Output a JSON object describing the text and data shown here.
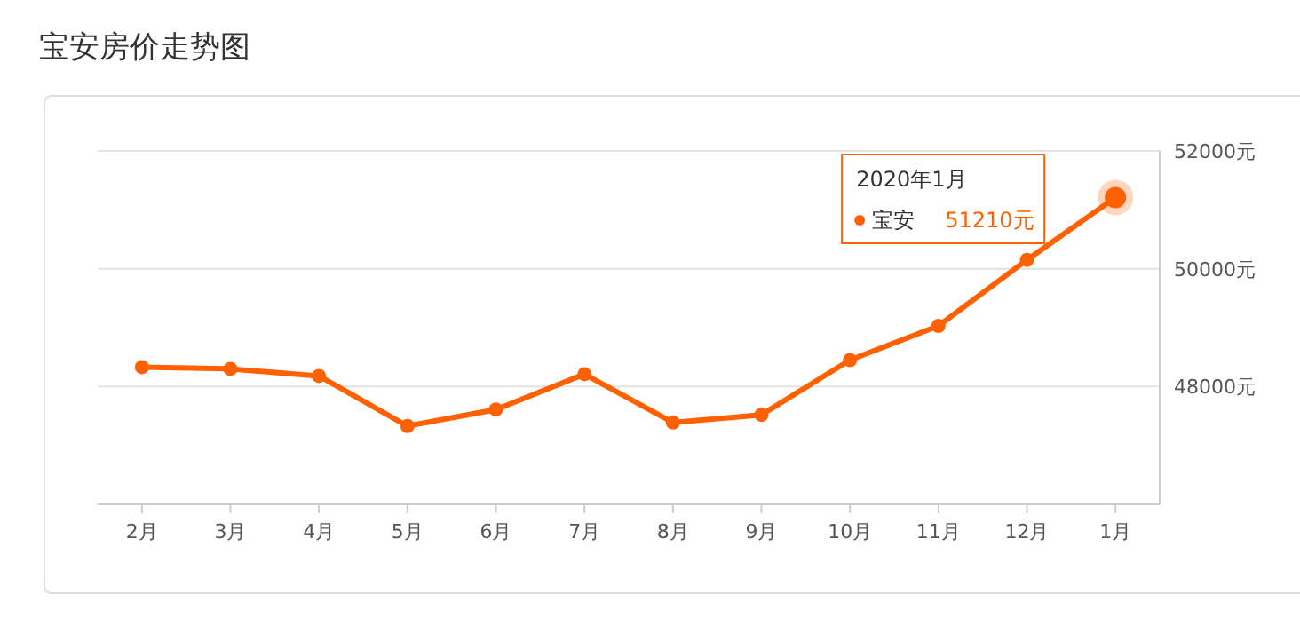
{
  "chart_data": {
    "type": "line",
    "title": "宝安房价走势图",
    "categories": [
      "2月",
      "3月",
      "4月",
      "5月",
      "6月",
      "7月",
      "8月",
      "9月",
      "10月",
      "11月",
      "12月",
      "1月"
    ],
    "series": [
      {
        "name": "宝安",
        "color": "#ff6000",
        "values": [
          48330,
          48300,
          48180,
          47330,
          47610,
          48210,
          47390,
          47520,
          48450,
          49030,
          50150,
          51210
        ]
      }
    ],
    "annotations": [
      "2020年1月",
      "51210元"
    ],
    "ylim": [
      46000,
      52000
    ],
    "yticks": [
      {
        "value": 48000,
        "label": "48000元"
      },
      {
        "value": 50000,
        "label": "50000元"
      },
      {
        "value": 52000,
        "label": "52000元"
      }
    ],
    "grid": "y",
    "marker": "circle",
    "line_style": "solid",
    "legend": "top right"
  }
}
